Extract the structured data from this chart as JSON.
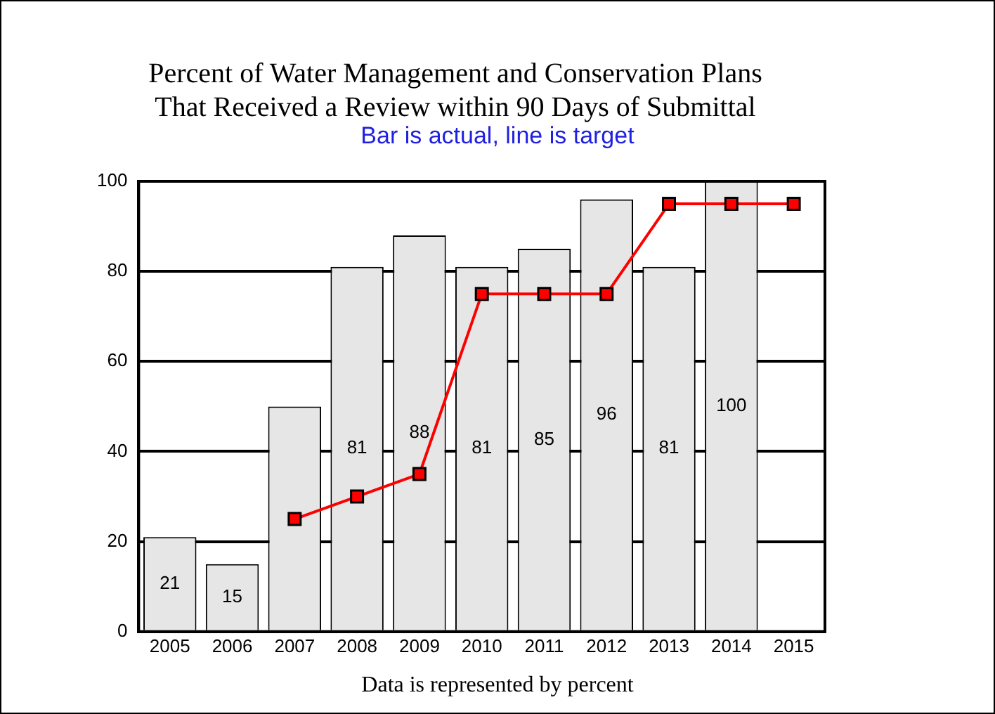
{
  "chart_data": {
    "type": "bar",
    "title": "Percent of Water Management and Conservation Plans\nThat Received a Review within 90 Days of Submittal",
    "subtitle": "Bar is actual, line is target",
    "categories": [
      "2005",
      "2006",
      "2007",
      "2008",
      "2009",
      "2010",
      "2011",
      "2012",
      "2013",
      "2014",
      "2015"
    ],
    "series": [
      {
        "color": "#e6e6e6",
        "values": [
          21,
          15,
          50,
          81,
          88,
          81,
          85,
          96,
          81,
          100,
          null
        ],
        "value_labels": [
          "21",
          "15",
          null,
          "81",
          "88",
          "81",
          "85",
          "96",
          "81",
          "100",
          null
        ]
      },
      {
        "type": "line",
        "color": "#ff0000",
        "values": [
          null,
          null,
          25,
          30,
          35,
          75,
          75,
          75,
          95,
          95,
          95
        ]
      }
    ],
    "ylim": [
      0,
      100
    ],
    "yticks": [
      0,
      20,
      40,
      60,
      80,
      100
    ],
    "grid": "y",
    "legend": false,
    "marker": "square",
    "line_style": "solid",
    "annotations": [
      "Data is represented by percent"
    ]
  }
}
